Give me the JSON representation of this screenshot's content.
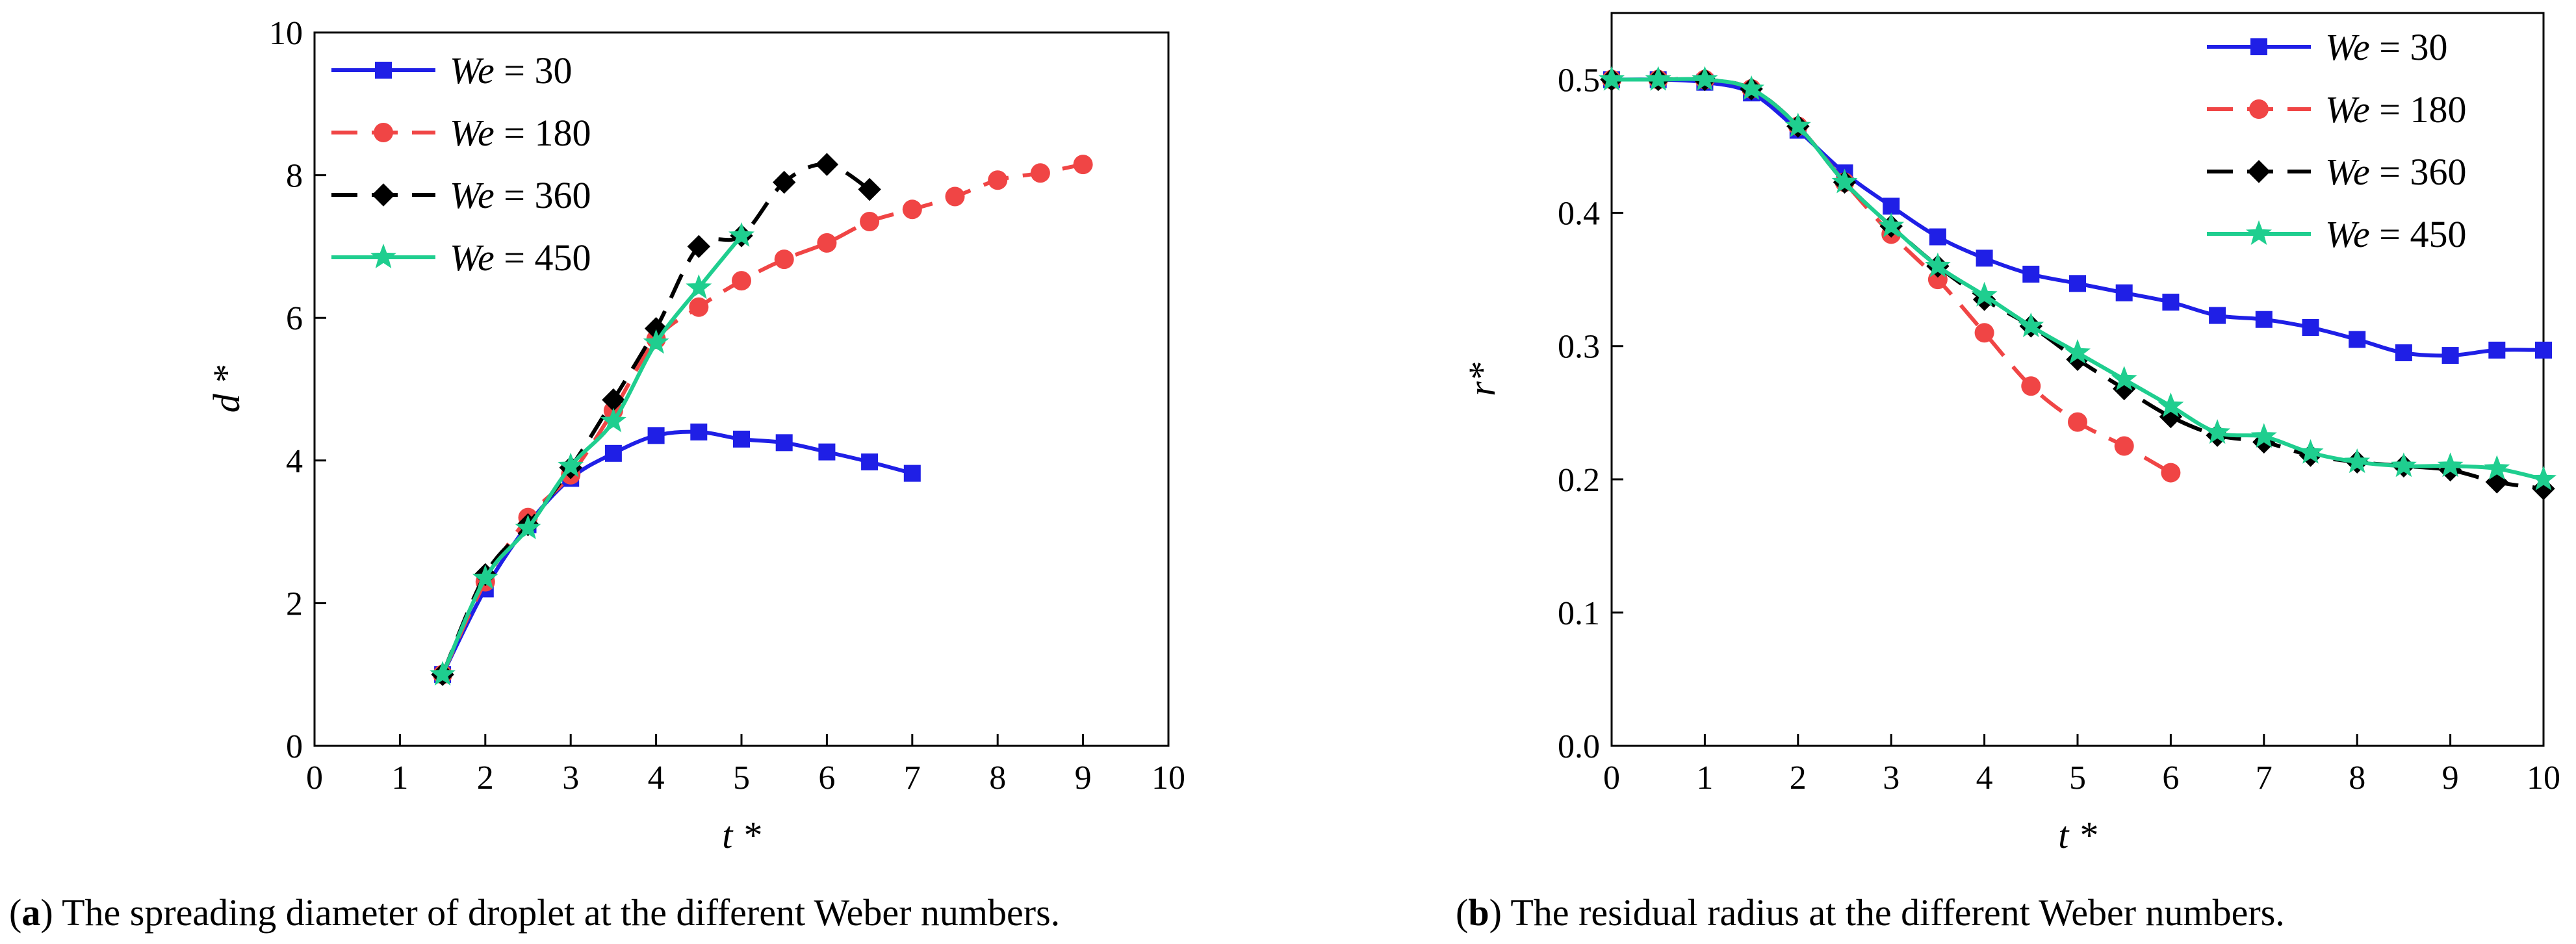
{
  "chart_data": [
    {
      "type": "line",
      "panel": "a",
      "caption_label": "(a)",
      "caption_text": "The spreading diameter of droplet at the different Weber numbers.",
      "xlabel": "t *",
      "ylabel": "d *",
      "xlim": [
        0,
        10
      ],
      "ylim": [
        0,
        10
      ],
      "xticks": [
        "0",
        "1",
        "2",
        "3",
        "4",
        "5",
        "6",
        "7",
        "8",
        "9",
        "10"
      ],
      "yticks": [
        "0",
        "2",
        "4",
        "6",
        "8",
        "10"
      ],
      "legend_position": "top-left",
      "series": [
        {
          "name": "We = 30",
          "we": "We",
          "rest": " = 30",
          "color": "#1f1fe6",
          "dash": "solid",
          "marker": "square",
          "x": [
            1.5,
            2,
            2.5,
            3,
            3.5,
            4,
            4.5,
            5,
            5.5,
            6,
            6.5,
            7
          ],
          "y": [
            1.0,
            2.2,
            3.1,
            3.75,
            4.1,
            4.35,
            4.4,
            4.3,
            4.25,
            4.12,
            3.98,
            3.82
          ]
        },
        {
          "name": "We = 180",
          "we": "We",
          "rest": " = 180",
          "color": "#f04545",
          "dash": "dashed",
          "marker": "circle",
          "x": [
            1.5,
            2,
            2.5,
            3,
            3.5,
            4,
            4.5,
            5,
            5.5,
            6,
            6.5,
            7,
            7.5,
            8,
            8.5,
            9
          ],
          "y": [
            1.0,
            2.3,
            3.2,
            3.8,
            4.7,
            5.7,
            6.15,
            6.52,
            6.82,
            7.05,
            7.35,
            7.52,
            7.7,
            7.93,
            8.03,
            8.15
          ]
        },
        {
          "name": "We = 360",
          "we": "We",
          "rest": " = 360",
          "color": "#000000",
          "dash": "dashed",
          "marker": "diamond",
          "x": [
            1.5,
            2,
            2.5,
            3,
            3.5,
            4,
            4.5,
            5,
            5.5,
            6,
            6.5
          ],
          "y": [
            1.0,
            2.4,
            3.1,
            3.9,
            4.85,
            5.85,
            7.0,
            7.15,
            7.9,
            8.15,
            7.8
          ]
        },
        {
          "name": "We = 450",
          "we": "We",
          "rest": " = 450",
          "color": "#1fce8f",
          "dash": "solid",
          "marker": "star",
          "x": [
            1.5,
            2,
            2.5,
            3,
            3.5,
            4,
            4.5,
            5
          ],
          "y": [
            1.0,
            2.35,
            3.05,
            3.92,
            4.55,
            5.65,
            6.42,
            7.15
          ]
        }
      ]
    },
    {
      "type": "line",
      "panel": "b",
      "caption_label": "(b)",
      "caption_text": "The residual radius at the different Weber numbers.",
      "xlabel": "t *",
      "ylabel": "r*",
      "xlim": [
        0,
        10
      ],
      "ylim": [
        0.0,
        0.55
      ],
      "xticks": [
        "0",
        "1",
        "2",
        "3",
        "4",
        "5",
        "6",
        "7",
        "8",
        "9",
        "10"
      ],
      "yticks": [
        "0.0",
        "0.1",
        "0.2",
        "0.3",
        "0.4",
        "0.5"
      ],
      "legend_position": "top-right",
      "series": [
        {
          "name": "We = 30",
          "we": "We",
          "rest": " = 30",
          "color": "#1f1fe6",
          "dash": "solid",
          "marker": "square",
          "x": [
            0,
            0.5,
            1,
            1.5,
            2,
            2.5,
            3,
            3.5,
            4,
            4.5,
            5,
            5.5,
            6,
            6.5,
            7,
            7.5,
            8,
            8.5,
            9,
            9.5,
            10
          ],
          "y": [
            0.5,
            0.5,
            0.498,
            0.49,
            0.462,
            0.43,
            0.405,
            0.382,
            0.366,
            0.354,
            0.347,
            0.34,
            0.333,
            0.323,
            0.32,
            0.314,
            0.305,
            0.295,
            0.293,
            0.297,
            0.297
          ]
        },
        {
          "name": "We = 180",
          "we": "We",
          "rest": " = 180",
          "color": "#f04545",
          "dash": "dashed",
          "marker": "circle",
          "x": [
            0,
            0.5,
            1,
            1.5,
            2,
            2.5,
            3,
            3.5,
            4,
            4.5,
            5,
            5.5,
            6
          ],
          "y": [
            0.5,
            0.5,
            0.5,
            0.493,
            0.465,
            0.423,
            0.384,
            0.35,
            0.31,
            0.27,
            0.243,
            0.225,
            0.205
          ]
        },
        {
          "name": "We = 360",
          "we": "We",
          "rest": " = 360",
          "color": "#000000",
          "dash": "dashed",
          "marker": "diamond",
          "x": [
            0,
            0.5,
            1,
            1.5,
            2,
            2.5,
            3,
            3.5,
            4,
            4.5,
            5,
            5.5,
            6,
            6.5,
            7,
            7.5,
            8,
            8.5,
            9,
            9.5,
            10
          ],
          "y": [
            0.5,
            0.5,
            0.5,
            0.493,
            0.465,
            0.423,
            0.39,
            0.36,
            0.335,
            0.315,
            0.29,
            0.268,
            0.247,
            0.233,
            0.228,
            0.218,
            0.213,
            0.21,
            0.207,
            0.198,
            0.193
          ]
        },
        {
          "name": "We = 450",
          "we": "We",
          "rest": " = 450",
          "color": "#1fce8f",
          "dash": "solid",
          "marker": "star",
          "x": [
            0,
            0.5,
            1,
            1.5,
            2,
            2.5,
            3,
            3.5,
            4,
            4.5,
            5,
            5.5,
            6,
            6.5,
            7,
            7.5,
            8,
            8.5,
            9,
            9.5,
            10
          ],
          "y": [
            0.5,
            0.5,
            0.5,
            0.493,
            0.465,
            0.423,
            0.39,
            0.36,
            0.338,
            0.315,
            0.295,
            0.275,
            0.255,
            0.235,
            0.232,
            0.22,
            0.213,
            0.21,
            0.21,
            0.208,
            0.2
          ]
        }
      ]
    }
  ]
}
